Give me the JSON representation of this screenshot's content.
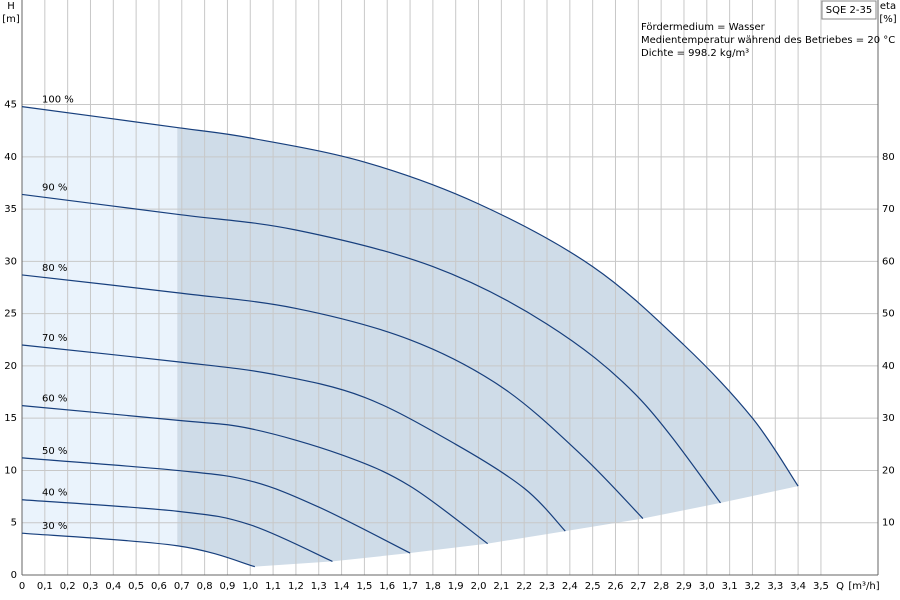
{
  "chart_data": {
    "type": "line",
    "product": "SQE 2-35",
    "notes": [
      "Fördermedium = Wasser",
      "Medientemperatur während des Betriebes = 20 °C",
      "Dichte = 998.2 kg/m³"
    ],
    "y_axis_symbol": "H",
    "y_axis_unit": "[m]",
    "y2_axis_symbol": "eta",
    "y2_axis_unit": "[%]",
    "x_axis_symbol": "Q",
    "x_axis_unit": "[m³/h]",
    "xlim": [
      0,
      3.75
    ],
    "ylim": [
      0,
      55
    ],
    "y2lim": [
      0,
      110
    ],
    "xticks": [
      {
        "value": 0,
        "label": "0"
      },
      {
        "value": 0.1,
        "label": "0,1"
      },
      {
        "value": 0.2,
        "label": "0,2"
      },
      {
        "value": 0.3,
        "label": "0,3"
      },
      {
        "value": 0.4,
        "label": "0,4"
      },
      {
        "value": 0.5,
        "label": "0,5"
      },
      {
        "value": 0.6,
        "label": "0,6"
      },
      {
        "value": 0.7,
        "label": "0,7"
      },
      {
        "value": 0.8,
        "label": "0,8"
      },
      {
        "value": 0.9,
        "label": "0,9"
      },
      {
        "value": 1.0,
        "label": "1,0"
      },
      {
        "value": 1.1,
        "label": "1,1"
      },
      {
        "value": 1.2,
        "label": "1,2"
      },
      {
        "value": 1.3,
        "label": "1,3"
      },
      {
        "value": 1.4,
        "label": "1,4"
      },
      {
        "value": 1.5,
        "label": "1,5"
      },
      {
        "value": 1.6,
        "label": "1,6"
      },
      {
        "value": 1.7,
        "label": "1,7"
      },
      {
        "value": 1.8,
        "label": "1,8"
      },
      {
        "value": 1.9,
        "label": "1,9"
      },
      {
        "value": 2.0,
        "label": "2,0"
      },
      {
        "value": 2.1,
        "label": "2,1"
      },
      {
        "value": 2.2,
        "label": "2,2"
      },
      {
        "value": 2.3,
        "label": "2,3"
      },
      {
        "value": 2.4,
        "label": "2,4"
      },
      {
        "value": 2.5,
        "label": "2,5"
      },
      {
        "value": 2.6,
        "label": "2,6"
      },
      {
        "value": 2.7,
        "label": "2,7"
      },
      {
        "value": 2.8,
        "label": "2,8"
      },
      {
        "value": 2.9,
        "label": "2,9"
      },
      {
        "value": 3.0,
        "label": "3,0"
      },
      {
        "value": 3.1,
        "label": "3,1"
      },
      {
        "value": 3.2,
        "label": "3,2"
      },
      {
        "value": 3.3,
        "label": "3,3"
      },
      {
        "value": 3.4,
        "label": "3,4"
      },
      {
        "value": 3.5,
        "label": "3,5"
      }
    ],
    "yticks": [
      0,
      5,
      10,
      15,
      20,
      25,
      30,
      35,
      40,
      45
    ],
    "y2ticks": [
      10,
      20,
      30,
      40,
      50,
      60,
      70,
      80
    ],
    "grid": true,
    "series": [
      {
        "name": "100 %",
        "color": "#173f7d",
        "x": [
          0,
          0.68,
          1.0,
          1.5,
          2.0,
          2.5,
          2.9,
          3.2,
          3.4
        ],
        "values": [
          44.8,
          42.8,
          41.8,
          39.5,
          35.5,
          29.5,
          22,
          15,
          8.5
        ]
      },
      {
        "name": "90 %",
        "color": "#173f7d",
        "x": [
          0,
          0.68,
          1.2,
          1.8,
          2.3,
          2.7,
          3.06
        ],
        "values": [
          36.4,
          34.5,
          33,
          29.5,
          24,
          17,
          6.9
        ]
      },
      {
        "name": "80 %",
        "color": "#173f7d",
        "x": [
          0,
          0.68,
          1.2,
          1.7,
          2.1,
          2.45,
          2.72
        ],
        "values": [
          28.7,
          27,
          25.5,
          22.5,
          18,
          11.5,
          5.4
        ]
      },
      {
        "name": "70 %",
        "color": "#173f7d",
        "x": [
          0,
          0.68,
          1.1,
          1.5,
          1.9,
          2.2,
          2.38
        ],
        "values": [
          22,
          20.4,
          19.2,
          17,
          12.5,
          8.3,
          4.2
        ]
      },
      {
        "name": "60 %",
        "color": "#173f7d",
        "x": [
          0,
          0.68,
          1.0,
          1.4,
          1.7,
          2.04
        ],
        "values": [
          16.2,
          14.8,
          14,
          11.5,
          8.5,
          3.0
        ]
      },
      {
        "name": "50 %",
        "color": "#173f7d",
        "x": [
          0,
          0.68,
          1.0,
          1.3,
          1.7
        ],
        "values": [
          11.2,
          10,
          9,
          6.5,
          2.1
        ]
      },
      {
        "name": "40 %",
        "color": "#173f7d",
        "x": [
          0,
          0.68,
          1.0,
          1.36
        ],
        "values": [
          7.2,
          6.1,
          4.8,
          1.3
        ]
      },
      {
        "name": "30 %",
        "color": "#173f7d",
        "x": [
          0,
          0.68,
          1.02
        ],
        "values": [
          4,
          2.8,
          0.8
        ]
      }
    ]
  }
}
